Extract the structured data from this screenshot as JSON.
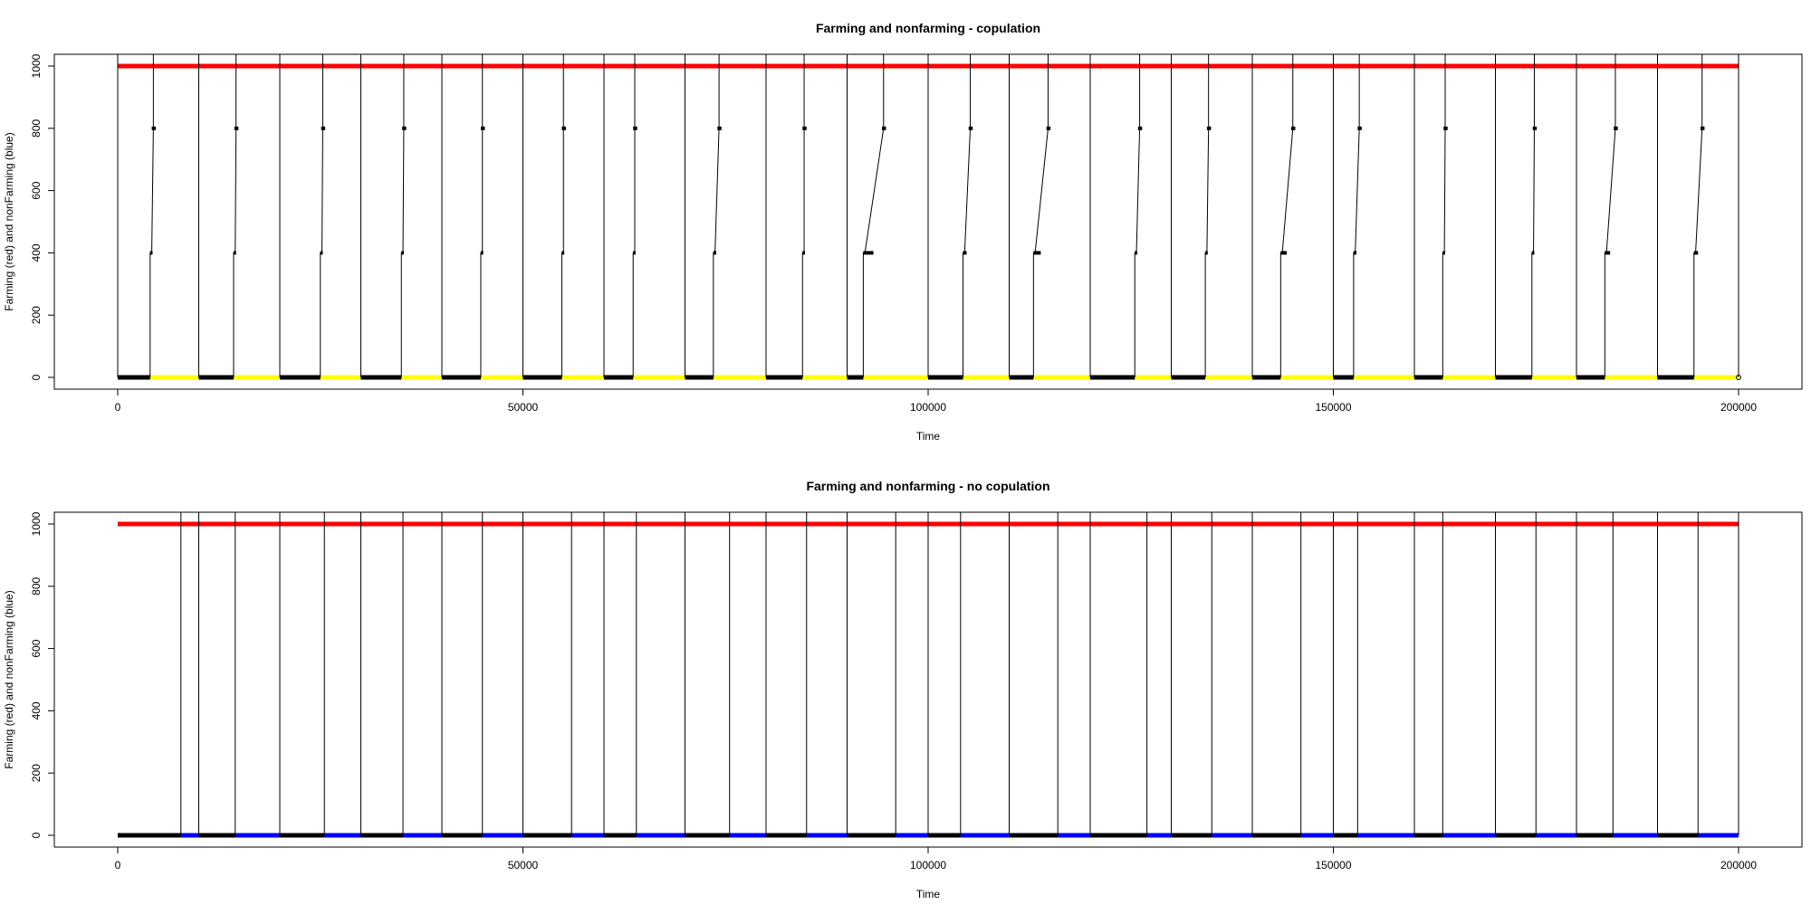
{
  "colors": {
    "farming": "#ff0000",
    "nonfarming_panel1": "#ffff00",
    "nonfarming_panel2": "#0000ff",
    "events": "#000000"
  },
  "chart_data": [
    {
      "type": "line",
      "title": "Farming and nonfarming - copulation",
      "xlabel": "Time",
      "ylabel": "Farming (red) and nonFarming (blue)",
      "xlim": [
        0,
        200000
      ],
      "ylim": [
        0,
        1000
      ],
      "x_ticks": [
        0,
        50000,
        100000,
        150000,
        200000
      ],
      "x_tick_labels": [
        "0",
        "50000",
        "100000",
        "150000",
        "200000"
      ],
      "y_ticks": [
        0,
        200,
        400,
        600,
        800,
        1000
      ],
      "y_tick_labels": [
        "0",
        "200",
        "400",
        "600",
        "800",
        "1000"
      ],
      "grid": false,
      "series": [
        {
          "points": [
            [
              0,
              1000
            ],
            [
              200000,
              1000
            ]
          ]
        },
        {
          "points": [
            [
              0,
              0
            ],
            [
              200000,
              0
            ]
          ]
        }
      ],
      "nonfarming_color": "yellow",
      "cycles": [
        {
          "start": 0,
          "r400": 4000,
          "r800": 4400
        },
        {
          "start": 10000,
          "r400": 14300,
          "r800": 14600
        },
        {
          "start": 20000,
          "r400": 25000,
          "r800": 25300
        },
        {
          "start": 30000,
          "r400": 35000,
          "r800": 35300
        },
        {
          "start": 40000,
          "r400": 44800,
          "r800": 45000
        },
        {
          "start": 50000,
          "r400": 54800,
          "r800": 55000
        },
        {
          "start": 60000,
          "r400": 63600,
          "r800": 63800
        },
        {
          "start": 70000,
          "r400": 73500,
          "r800": 74200
        },
        {
          "start": 80000,
          "r400": 84500,
          "r800": 84700
        },
        {
          "start": 90000,
          "r400": 92000,
          "r800": 94500
        },
        {
          "start": 100000,
          "r400": 104300,
          "r800": 105200
        },
        {
          "start": 110000,
          "r400": 113000,
          "r800": 114800
        },
        {
          "start": 120000,
          "r400": 125500,
          "r800": 126100
        },
        {
          "start": 130000,
          "r400": 134200,
          "r800": 134600
        },
        {
          "start": 140000,
          "r400": 143500,
          "r800": 145000
        },
        {
          "start": 150000,
          "r400": 152500,
          "r800": 153200
        },
        {
          "start": 160000,
          "r400": 163500,
          "r800": 163800
        },
        {
          "start": 170000,
          "r400": 174500,
          "r800": 174800
        },
        {
          "start": 180000,
          "r400": 183500,
          "r800": 184800
        },
        {
          "start": 190000,
          "r400": 194500,
          "r800": 195500
        }
      ],
      "end_spike": 200000
    },
    {
      "type": "line",
      "title": "Farming and nonfarming - no copulation",
      "xlabel": "Time",
      "ylabel": "Farming (red) and nonFarming (blue)",
      "xlim": [
        0,
        200000
      ],
      "ylim": [
        0,
        1000
      ],
      "x_ticks": [
        0,
        50000,
        100000,
        150000,
        200000
      ],
      "x_tick_labels": [
        "0",
        "50000",
        "100000",
        "150000",
        "200000"
      ],
      "y_ticks": [
        0,
        200,
        400,
        600,
        800,
        1000
      ],
      "y_tick_labels": [
        "0",
        "200",
        "400",
        "600",
        "800",
        "1000"
      ],
      "grid": false,
      "series": [
        {
          "points": [
            [
              0,
              1000
            ],
            [
              200000,
              1000
            ]
          ]
        },
        {
          "points": [
            [
              0,
              0
            ],
            [
              200000,
              0
            ]
          ]
        }
      ],
      "nonfarming_color": "blue",
      "spikes": [
        7800,
        10000,
        14500,
        20000,
        25500,
        30000,
        35200,
        40000,
        45000,
        50000,
        56000,
        60000,
        64000,
        70000,
        75500,
        80000,
        85000,
        90000,
        96000,
        100000,
        104000,
        110000,
        116000,
        120000,
        127000,
        130000,
        135000,
        140000,
        146000,
        150000,
        153000,
        160000,
        163500,
        170000,
        175000,
        180000,
        184500,
        190000,
        195000,
        200000
      ],
      "black_segments": [
        [
          0,
          7800
        ],
        [
          10000,
          14500
        ],
        [
          20000,
          25500
        ],
        [
          30000,
          35200
        ],
        [
          40000,
          45000
        ],
        [
          50000,
          56000
        ],
        [
          60000,
          64000
        ],
        [
          70000,
          75500
        ],
        [
          80000,
          85000
        ],
        [
          90000,
          96000
        ],
        [
          100000,
          104000
        ],
        [
          110000,
          116000
        ],
        [
          120000,
          127000
        ],
        [
          130000,
          135000
        ],
        [
          140000,
          146000
        ],
        [
          150000,
          153000
        ],
        [
          160000,
          163500
        ],
        [
          170000,
          175000
        ],
        [
          180000,
          184500
        ],
        [
          190000,
          195000
        ]
      ]
    }
  ]
}
